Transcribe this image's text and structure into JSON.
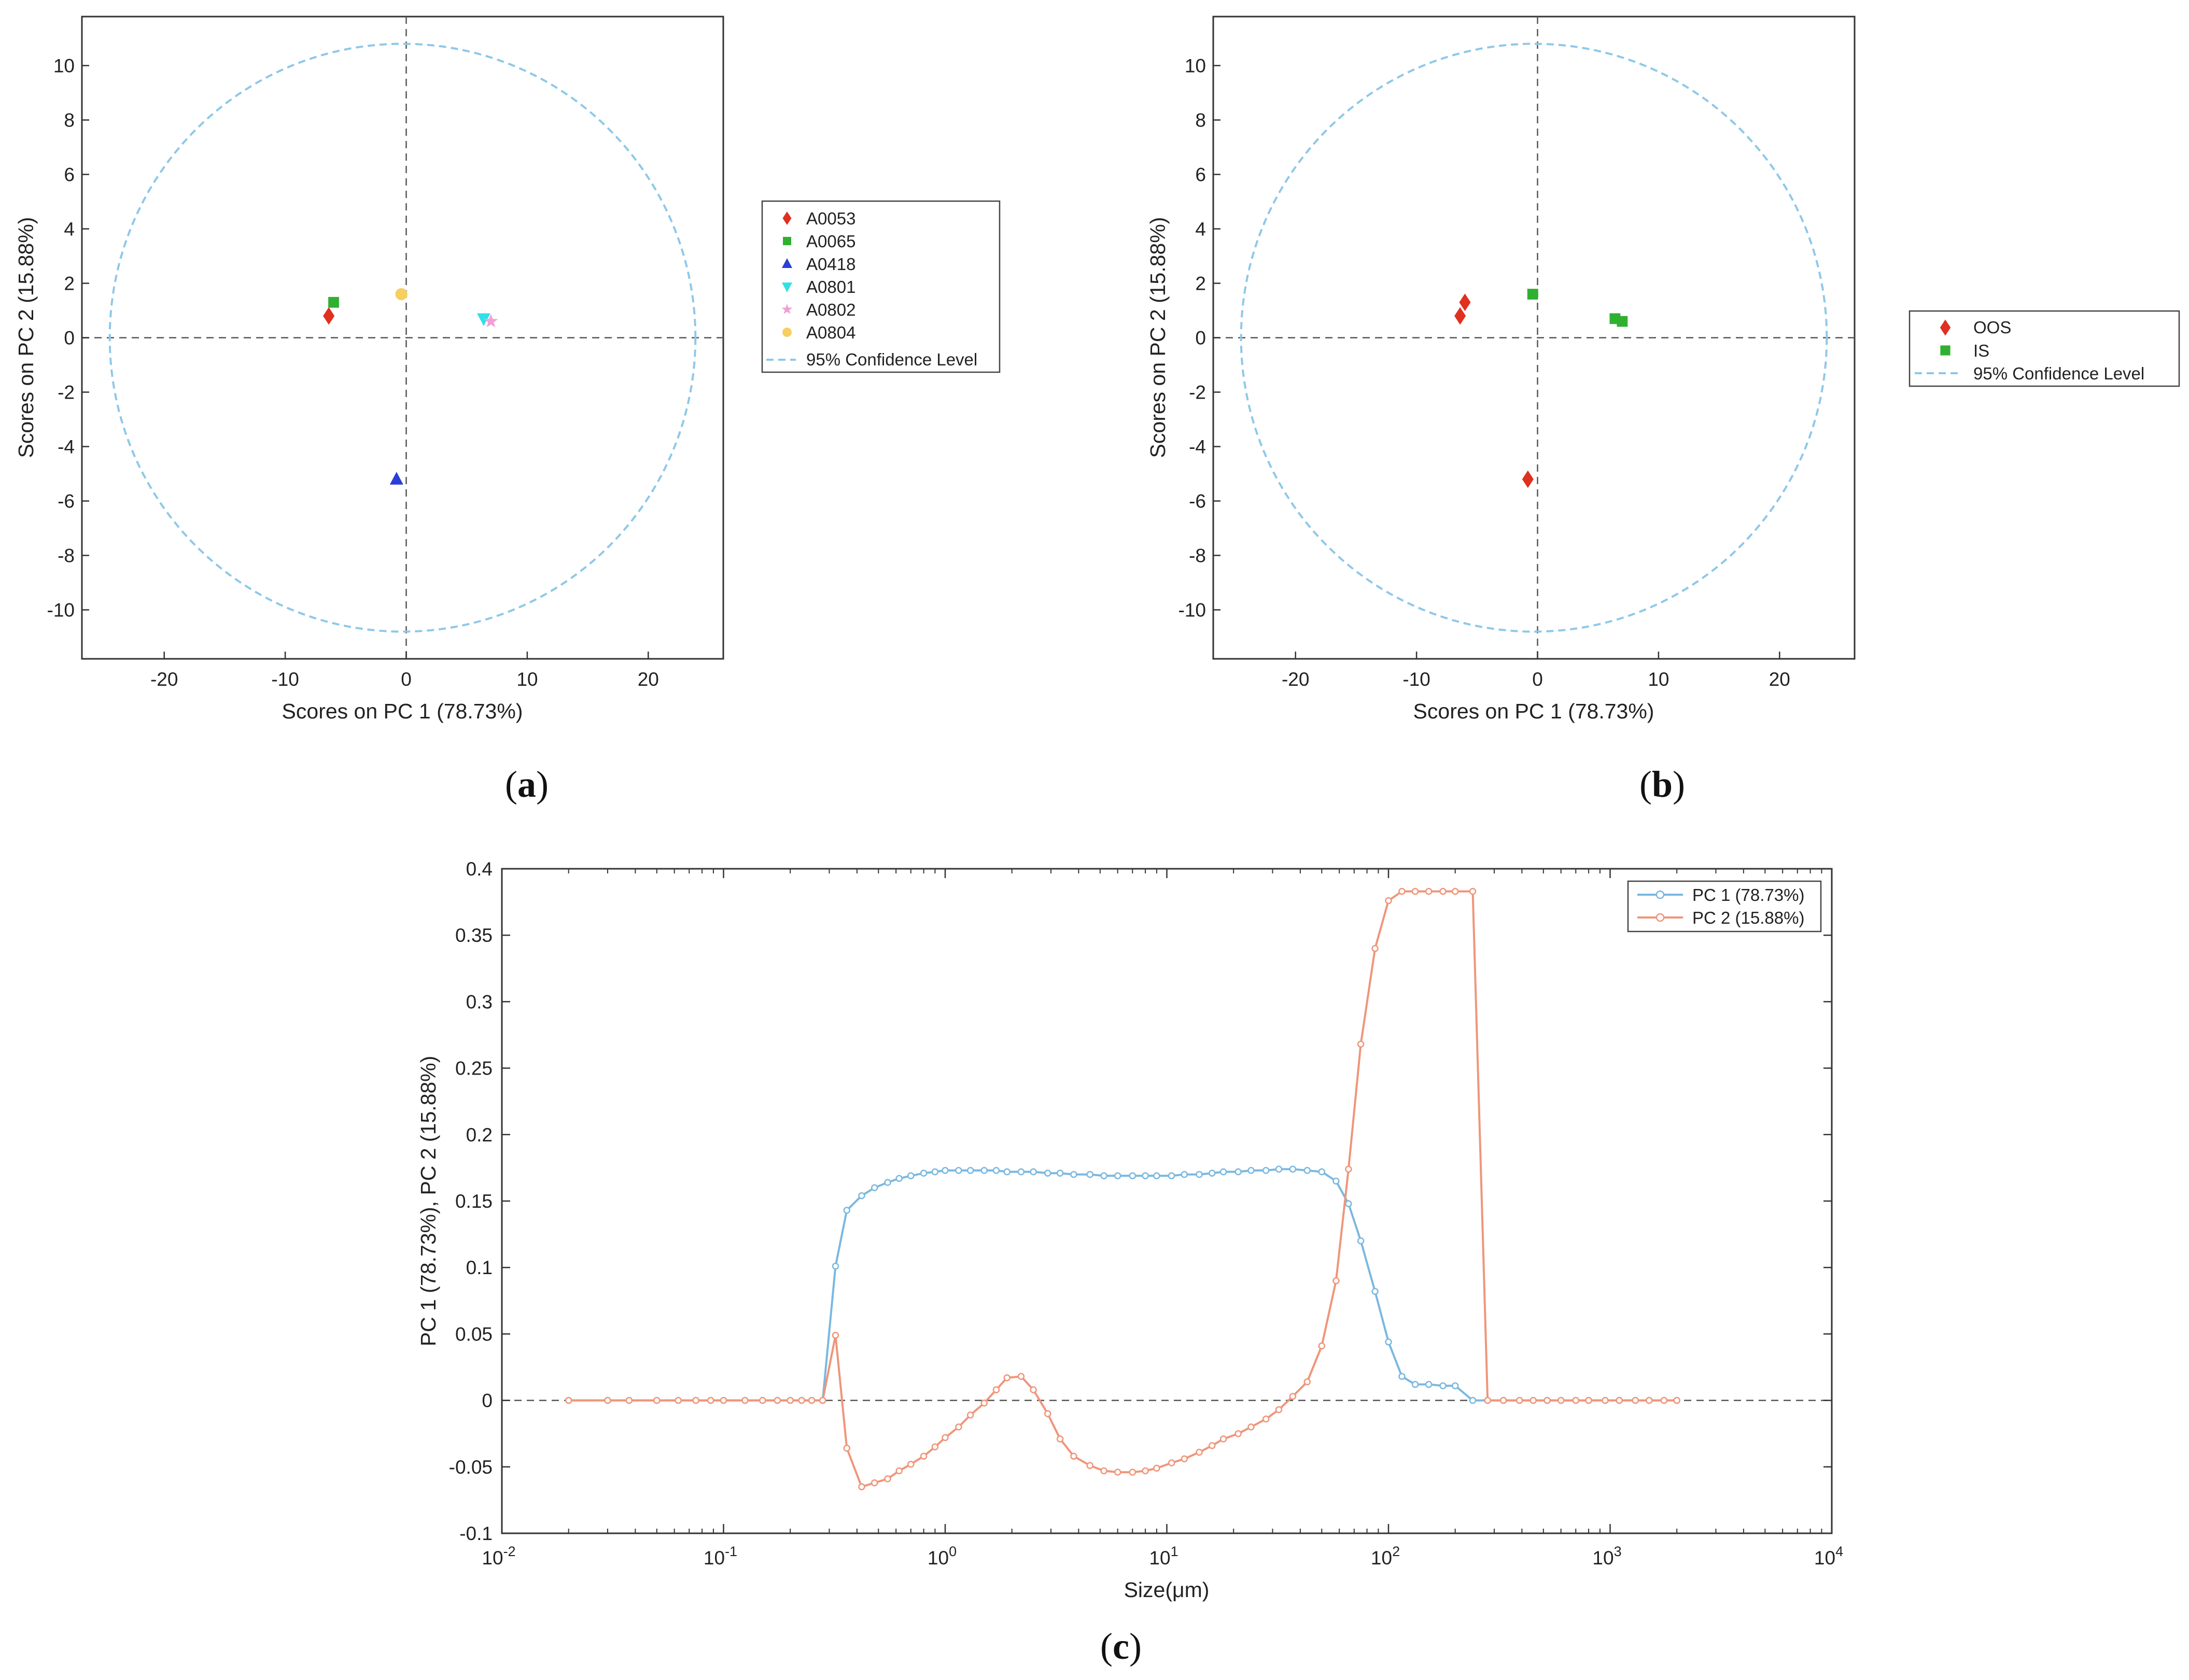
{
  "chart_data": [
    {
      "id": "a",
      "panel_label": "a",
      "type": "scatter",
      "xlabel": "Scores on PC 1 (78.73%)",
      "ylabel": "Scores on PC 2 (15.88%)",
      "xlim": [
        -26.8,
        26.2
      ],
      "ylim": [
        -11.8,
        11.8
      ],
      "xticks": [
        -20,
        -10,
        0,
        10,
        20
      ],
      "yticks": [
        -10,
        -8,
        -6,
        -4,
        -2,
        0,
        2,
        4,
        6,
        8,
        10
      ],
      "ellipse": {
        "cx": -0.3,
        "cy": 0,
        "rx": 24.2,
        "ry": 10.8,
        "color": "#8ec8e8"
      },
      "series": [
        {
          "name": "A0053",
          "marker": "diamond",
          "color": "#e03020",
          "x": [
            -6.4
          ],
          "y": [
            0.8
          ]
        },
        {
          "name": "A0065",
          "marker": "square",
          "color": "#30b030",
          "x": [
            -6.0
          ],
          "y": [
            1.3
          ]
        },
        {
          "name": "A0418",
          "marker": "triangle-up",
          "color": "#2a3ed8",
          "x": [
            -0.8
          ],
          "y": [
            -5.2
          ]
        },
        {
          "name": "A0801",
          "marker": "triangle-down",
          "color": "#30e0e8",
          "x": [
            6.4
          ],
          "y": [
            0.7
          ]
        },
        {
          "name": "A0802",
          "marker": "star",
          "color": "#f0a0d8",
          "x": [
            7.0
          ],
          "y": [
            0.6
          ]
        },
        {
          "name": "A0804",
          "marker": "circle",
          "color": "#f5d060",
          "x": [
            -0.4
          ],
          "y": [
            1.6
          ]
        }
      ],
      "legend": [
        "A0053",
        "A0065",
        "A0418",
        "A0801",
        "A0802",
        "A0804",
        "95% Confidence Level"
      ]
    },
    {
      "id": "b",
      "panel_label": "b",
      "type": "scatter",
      "xlabel": "Scores on PC 1 (78.73%)",
      "ylabel": "Scores on PC 2 (15.88%)",
      "xlim": [
        -26.8,
        26.2
      ],
      "ylim": [
        -11.8,
        11.8
      ],
      "xticks": [
        -20,
        -10,
        0,
        10,
        20
      ],
      "yticks": [
        -10,
        -8,
        -6,
        -4,
        -2,
        0,
        2,
        4,
        6,
        8,
        10
      ],
      "ellipse": {
        "cx": -0.3,
        "cy": 0,
        "rx": 24.2,
        "ry": 10.8,
        "color": "#8ec8e8"
      },
      "series": [
        {
          "name": "OOS",
          "marker": "diamond",
          "color": "#e03020",
          "x": [
            -6.4,
            -6.0,
            -0.8
          ],
          "y": [
            0.8,
            1.3,
            -5.2
          ]
        },
        {
          "name": "IS",
          "marker": "square",
          "color": "#30b030",
          "x": [
            -0.4,
            6.4,
            7.0
          ],
          "y": [
            1.6,
            0.7,
            0.6
          ]
        }
      ],
      "legend": [
        "OOS",
        "IS",
        "95% Confidence Level"
      ]
    },
    {
      "id": "c",
      "panel_label": "c",
      "type": "line",
      "xscale": "log",
      "xlabel": "Size(μm)",
      "ylabel": "PC 1 (78.73%), PC 2 (15.88%)",
      "xlim": [
        0.01,
        10000
      ],
      "ylim": [
        -0.1,
        0.4
      ],
      "xticks": [
        {
          "base": "10",
          "exp": "-2"
        },
        {
          "base": "10",
          "exp": "-1"
        },
        {
          "base": "10",
          "exp": "0"
        },
        {
          "base": "10",
          "exp": "1"
        },
        {
          "base": "10",
          "exp": "2"
        },
        {
          "base": "10",
          "exp": "3"
        },
        {
          "base": "10",
          "exp": "4"
        }
      ],
      "yticks": [
        "-0.1",
        "-0.05",
        "0",
        "0.05",
        "0.1",
        "0.15",
        "0.2",
        "0.25",
        "0.3",
        "0.35",
        "0.4"
      ],
      "x": [
        0.02,
        0.03,
        0.0375,
        0.05,
        0.0625,
        0.075,
        0.0875,
        0.1,
        0.125,
        0.15,
        0.175,
        0.2,
        0.225,
        0.25,
        0.28,
        0.32,
        0.36,
        0.42,
        0.48,
        0.55,
        0.62,
        0.7,
        0.8,
        0.9,
        1.0,
        1.15,
        1.3,
        1.5,
        1.7,
        1.9,
        2.2,
        2.5,
        2.9,
        3.3,
        3.8,
        4.5,
        5.2,
        6.0,
        7.0,
        8.0,
        9.0,
        10.5,
        12.0,
        14.0,
        16.0,
        18.0,
        21.0,
        24.0,
        28.0,
        32.0,
        37.0,
        43.0,
        50.0,
        58.0,
        66.0,
        75.0,
        87.0,
        100.0,
        115.0,
        132.0,
        152.0,
        176.0,
        200.0,
        240.0,
        280.0,
        330.0,
        390.0,
        450.0,
        520.0,
        600.0,
        700.0,
        800.0,
        950.0,
        1100.0,
        1300.0,
        1500.0,
        1750.0,
        2000.0
      ],
      "series": [
        {
          "name": "PC 1 (78.73%)",
          "color": "#7ab8e0",
          "values": [
            0,
            0,
            0,
            0,
            0,
            0,
            0,
            0,
            0,
            0,
            0,
            0,
            0,
            0,
            0,
            0.101,
            0.143,
            0.154,
            0.16,
            0.164,
            0.167,
            0.169,
            0.171,
            0.172,
            0.173,
            0.173,
            0.173,
            0.173,
            0.173,
            0.172,
            0.172,
            0.172,
            0.171,
            0.171,
            0.17,
            0.17,
            0.169,
            0.169,
            0.169,
            0.169,
            0.169,
            0.169,
            0.17,
            0.17,
            0.171,
            0.172,
            0.172,
            0.173,
            0.173,
            0.174,
            0.174,
            0.173,
            0.172,
            0.165,
            0.148,
            0.12,
            0.082,
            0.044,
            0.018,
            0.012,
            0.012,
            0.011,
            0.011,
            0,
            0,
            0,
            0,
            0,
            0,
            0,
            0,
            0,
            0,
            0,
            0,
            0,
            0,
            0
          ]
        },
        {
          "name": "PC 2 (15.88%)",
          "color": "#f0957a",
          "values": [
            0,
            0,
            0,
            0,
            0,
            0,
            0,
            0,
            0,
            0,
            0,
            0,
            0,
            0,
            0,
            0.049,
            -0.036,
            -0.065,
            -0.062,
            -0.059,
            -0.053,
            -0.048,
            -0.042,
            -0.035,
            -0.028,
            -0.02,
            -0.011,
            -0.002,
            0.008,
            0.017,
            0.018,
            0.008,
            -0.01,
            -0.029,
            -0.042,
            -0.049,
            -0.053,
            -0.054,
            -0.054,
            -0.053,
            -0.051,
            -0.047,
            -0.044,
            -0.039,
            -0.034,
            -0.029,
            -0.025,
            -0.02,
            -0.014,
            -0.007,
            0.003,
            0.014,
            0.041,
            0.09,
            0.174,
            0.268,
            0.34,
            0.376,
            0.383,
            0.383,
            0.383,
            0.383,
            0.383,
            0.383,
            0,
            0,
            0,
            0,
            0,
            0,
            0,
            0,
            0,
            0,
            0,
            0,
            0,
            0
          ]
        }
      ],
      "legend": [
        "PC 1 (78.73%)",
        "PC 2 (15.88%)"
      ]
    }
  ]
}
